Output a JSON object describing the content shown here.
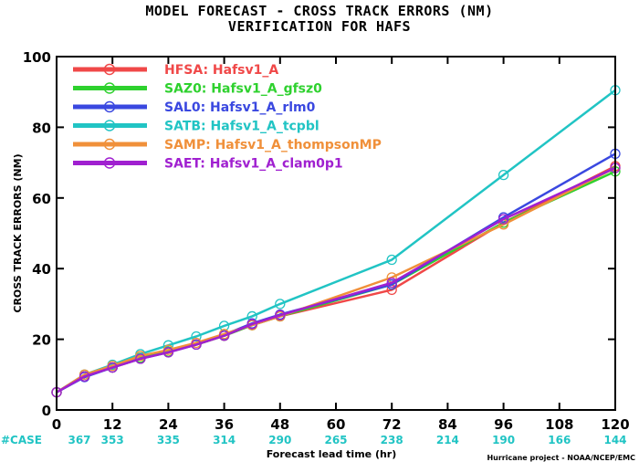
{
  "title": "MODEL FORECAST - CROSS TRACK ERRORS (NM)",
  "subtitle": "VERIFICATION FOR HAFS",
  "credit": "Hurricane project - NOAA/NCEP/EMC",
  "case_label": "#CASE",
  "chart_data": {
    "type": "line",
    "xlabel": "Forecast lead time (hr)",
    "ylabel": "CROSS TRACK ERRORS (NM)",
    "xlim": [
      0,
      120
    ],
    "ylim": [
      0,
      100
    ],
    "xticks": [
      0,
      12,
      24,
      36,
      48,
      60,
      72,
      84,
      96,
      108,
      120
    ],
    "yticks": [
      0,
      20,
      40,
      60,
      80,
      100
    ],
    "case_counts": [
      367,
      353,
      335,
      314,
      290,
      265,
      238,
      214,
      190,
      166,
      144
    ],
    "legend_position": "top-left",
    "grid": false,
    "series": [
      {
        "name": "HFSA:  Hafsv1_A",
        "color": "#f04848",
        "x": [
          0,
          6,
          12,
          18,
          24,
          30,
          36,
          42,
          48,
          72,
          96,
          120
        ],
        "y": [
          5.0,
          9.5,
          12.0,
          14.5,
          16.5,
          18.5,
          21.0,
          24.0,
          26.5,
          34.0,
          53.0,
          69.0
        ]
      },
      {
        "name": "SAZ0:  Hafsv1_A_gfsz0",
        "color": "#2ed12e",
        "x": [
          0,
          6,
          12,
          18,
          24,
          30,
          36,
          42,
          48,
          72,
          96,
          120
        ],
        "y": [
          5.0,
          9.5,
          12.0,
          14.8,
          16.5,
          18.5,
          21.0,
          24.0,
          26.5,
          35.5,
          53.0,
          67.5
        ]
      },
      {
        "name": "SAL0:  Hafsv1_A_rlm0",
        "color": "#3a48e0",
        "x": [
          0,
          6,
          12,
          18,
          24,
          30,
          36,
          42,
          48,
          72,
          96,
          120
        ],
        "y": [
          5.0,
          9.3,
          12.0,
          14.5,
          16.3,
          18.5,
          21.3,
          24.5,
          27.0,
          35.5,
          54.5,
          72.5
        ]
      },
      {
        "name": "SATB:  Hafsv1_A_tcpbl",
        "color": "#21c4c4",
        "x": [
          0,
          6,
          12,
          18,
          24,
          30,
          36,
          42,
          48,
          72,
          96,
          120
        ],
        "y": [
          5.0,
          10.0,
          12.8,
          15.8,
          18.3,
          20.8,
          23.8,
          26.5,
          30.0,
          42.5,
          66.5,
          90.5
        ]
      },
      {
        "name": "SAMP:  Hafsv1_A_thompsonMP",
        "color": "#f0903a",
        "x": [
          0,
          6,
          12,
          18,
          24,
          30,
          36,
          42,
          48,
          72,
          96,
          120
        ],
        "y": [
          5.0,
          10.0,
          12.5,
          15.3,
          17.0,
          19.0,
          21.5,
          24.0,
          26.5,
          37.5,
          52.5,
          68.5
        ]
      },
      {
        "name": "SAET:  Hafsv1_A_clam0p1",
        "color": "#a020d0",
        "x": [
          0,
          6,
          12,
          18,
          24,
          30,
          36,
          42,
          48,
          72,
          96,
          120
        ],
        "y": [
          5.0,
          9.5,
          12.0,
          14.5,
          16.3,
          18.5,
          21.0,
          24.3,
          26.8,
          36.0,
          54.0,
          68.5
        ]
      }
    ]
  }
}
